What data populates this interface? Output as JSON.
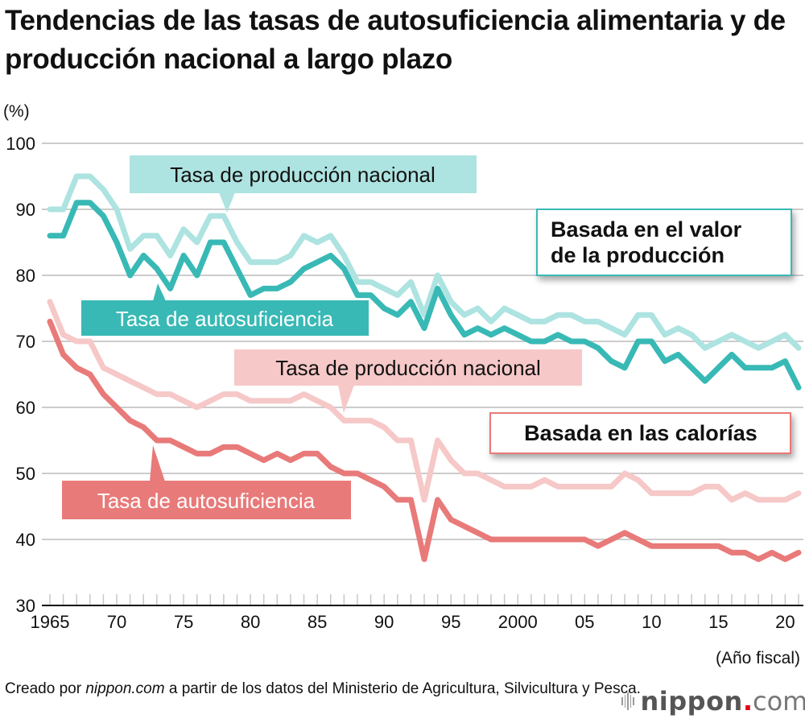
{
  "title": "Tendencias de las tasas de autosuficiencia alimentaria y de producción nacional a largo plazo",
  "footer": {
    "prefix": "Creado por ",
    "source_italic": "nippon.com",
    "suffix": " a partir de los datos del Ministerio de Agricultura, Silvicultura y Pesca."
  },
  "logo": {
    "name": "nippon",
    "dot": ".",
    "tld": "com",
    "icon": "sound-bars-icon"
  },
  "colors": {
    "value_production": "#ade3e0",
    "value_self": "#38b9b5",
    "calorie_production": "#f6c8c8",
    "calorie_self": "#e87a79",
    "grid": "#cccccc",
    "axis": "#111111"
  },
  "annotations": {
    "value_production_label": "Tasa de producción nacional",
    "value_self_label": "Tasa de autosuficiencia",
    "calorie_production_label": "Tasa de producción nacional",
    "calorie_self_label": "Tasa de autosuficiencia",
    "value_group_line1": "Basada en el valor",
    "value_group_line2": "de la producción",
    "calorie_group": "Basada en las calorías"
  },
  "chart_data": {
    "type": "line",
    "title": "Tendencias de las tasas de autosuficiencia alimentaria y de producción nacional a largo plazo",
    "ylabel": "(%)",
    "xlabel": "(Año fiscal)",
    "ylim": [
      30,
      100
    ],
    "yticks": [
      30,
      40,
      50,
      60,
      70,
      80,
      90,
      100
    ],
    "xlim": [
      1965,
      2021
    ],
    "xticks": [
      {
        "year": 1965,
        "label": "1965"
      },
      {
        "year": 1970,
        "label": "70"
      },
      {
        "year": 1975,
        "label": "75"
      },
      {
        "year": 1980,
        "label": "80"
      },
      {
        "year": 1985,
        "label": "85"
      },
      {
        "year": 1990,
        "label": "90"
      },
      {
        "year": 1995,
        "label": "95"
      },
      {
        "year": 2000,
        "label": "2000"
      },
      {
        "year": 2005,
        "label": "05"
      },
      {
        "year": 2010,
        "label": "10"
      },
      {
        "year": 2015,
        "label": "15"
      },
      {
        "year": 2020,
        "label": "20"
      }
    ],
    "grid": true,
    "legend": "inline-callouts",
    "x_start": 1965,
    "series": [
      {
        "name": "Basada en el valor de la producción – Tasa de producción nacional",
        "color_key": "value_production",
        "values": [
          90,
          90,
          95,
          95,
          93,
          90,
          84,
          86,
          86,
          83,
          87,
          85,
          89,
          89,
          85,
          82,
          82,
          82,
          83,
          86,
          85,
          86,
          83,
          79,
          79,
          78,
          77,
          79,
          74,
          80,
          76,
          74,
          75,
          73,
          75,
          74,
          73,
          73,
          74,
          74,
          73,
          73,
          72,
          71,
          74,
          74,
          71,
          72,
          71,
          69,
          70,
          71,
          70,
          69,
          70,
          71,
          69
        ]
      },
      {
        "name": "Basada en el valor de la producción – Tasa de autosuficiencia",
        "color_key": "value_self",
        "values": [
          86,
          86,
          91,
          91,
          89,
          85,
          80,
          83,
          81,
          78,
          83,
          80,
          85,
          85,
          81,
          77,
          78,
          78,
          79,
          81,
          82,
          83,
          81,
          77,
          77,
          75,
          74,
          76,
          72,
          78,
          74,
          71,
          72,
          71,
          72,
          71,
          70,
          70,
          71,
          70,
          70,
          69,
          67,
          66,
          70,
          70,
          67,
          68,
          66,
          64,
          66,
          68,
          66,
          66,
          66,
          67,
          63
        ]
      },
      {
        "name": "Basada en las calorías – Tasa de producción nacional",
        "color_key": "calorie_production",
        "values": [
          76,
          71,
          70,
          70,
          66,
          65,
          64,
          63,
          62,
          62,
          61,
          60,
          61,
          62,
          62,
          61,
          61,
          61,
          61,
          62,
          61,
          60,
          58,
          58,
          58,
          57,
          55,
          55,
          46,
          55,
          52,
          50,
          50,
          49,
          48,
          48,
          48,
          49,
          48,
          48,
          48,
          48,
          48,
          50,
          49,
          47,
          47,
          47,
          47,
          48,
          48,
          46,
          47,
          46,
          46,
          46,
          47
        ]
      },
      {
        "name": "Basada en las calorías – Tasa de autosuficiencia",
        "color_key": "calorie_self",
        "values": [
          73,
          68,
          66,
          65,
          62,
          60,
          58,
          57,
          55,
          55,
          54,
          53,
          53,
          54,
          54,
          53,
          52,
          53,
          52,
          53,
          53,
          51,
          50,
          50,
          49,
          48,
          46,
          46,
          37,
          46,
          43,
          42,
          41,
          40,
          40,
          40,
          40,
          40,
          40,
          40,
          40,
          39,
          40,
          41,
          40,
          39,
          39,
          39,
          39,
          39,
          39,
          38,
          38,
          37,
          38,
          37,
          38
        ]
      }
    ]
  }
}
